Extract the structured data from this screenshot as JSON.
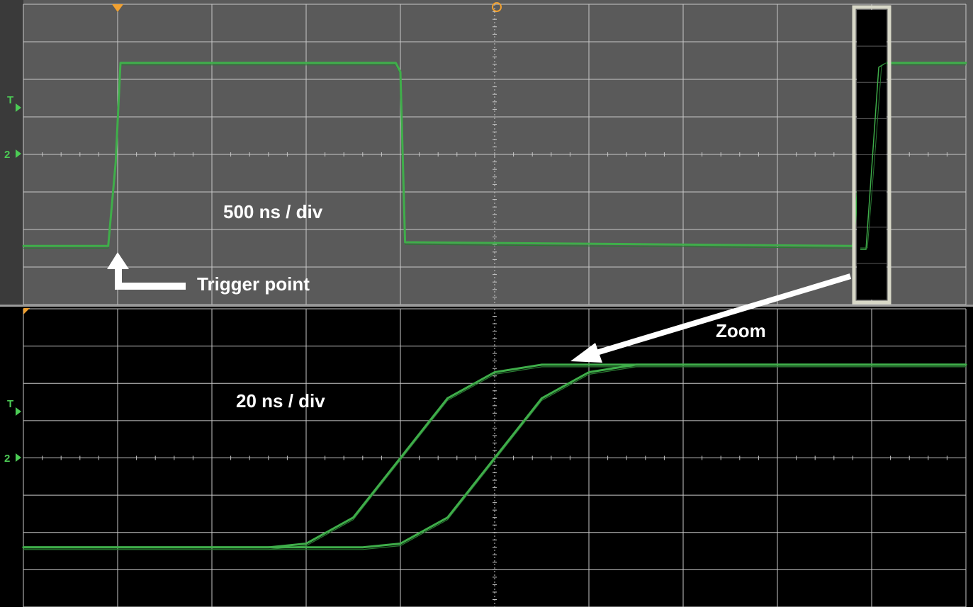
{
  "chart_data": [
    {
      "type": "line",
      "panel": "main",
      "x_unit": "div",
      "y_unit": "div",
      "xlim": [
        0,
        10
      ],
      "ylim": [
        -4,
        4
      ],
      "grid": true,
      "timebase_label": "500 ns / div",
      "series": [
        {
          "x": [
            0,
            0.9,
            0.98,
            1.03,
            3.95,
            4.0,
            4.05,
            8.8,
            8.88,
            8.95,
            10
          ],
          "values": [
            -2.44,
            -2.44,
            -0.2,
            2.44,
            2.44,
            2.2,
            -2.34,
            -2.44,
            -0.2,
            2.44,
            2.44
          ]
        }
      ]
    },
    {
      "type": "line",
      "panel": "zoom",
      "x_unit": "div",
      "y_unit": "div",
      "xlim": [
        0,
        10
      ],
      "ylim": [
        -4,
        4
      ],
      "grid": true,
      "timebase_label": "20 ns / div",
      "series": [
        {
          "x": [
            0,
            2.6,
            3.0,
            3.5,
            4.0,
            4.5,
            5.0,
            5.5,
            6.0,
            10
          ],
          "values": [
            -2.4,
            -2.4,
            -2.3,
            -1.6,
            0,
            1.6,
            2.3,
            2.5,
            2.5,
            2.5
          ]
        },
        {
          "x": [
            0,
            3.6,
            4.0,
            4.5,
            5.0,
            5.5,
            6.0,
            6.5,
            7.0,
            10
          ],
          "values": [
            -2.4,
            -2.4,
            -2.3,
            -1.6,
            0,
            1.6,
            2.3,
            2.5,
            2.5,
            2.5
          ]
        }
      ]
    }
  ],
  "annotations": {
    "main_timebase": "500 ns / div",
    "zoom_timebase": "20 ns / div",
    "trigger": "Trigger point",
    "zoom": "Zoom"
  },
  "markers": {
    "trigger_level": "T",
    "channel": "2"
  },
  "colors": {
    "main_background": "#5a5a5a",
    "zoom_background": "#000000",
    "trace": "#3fae4a",
    "trigger_marker": "#f0a030",
    "annotation": "#ffffff"
  }
}
